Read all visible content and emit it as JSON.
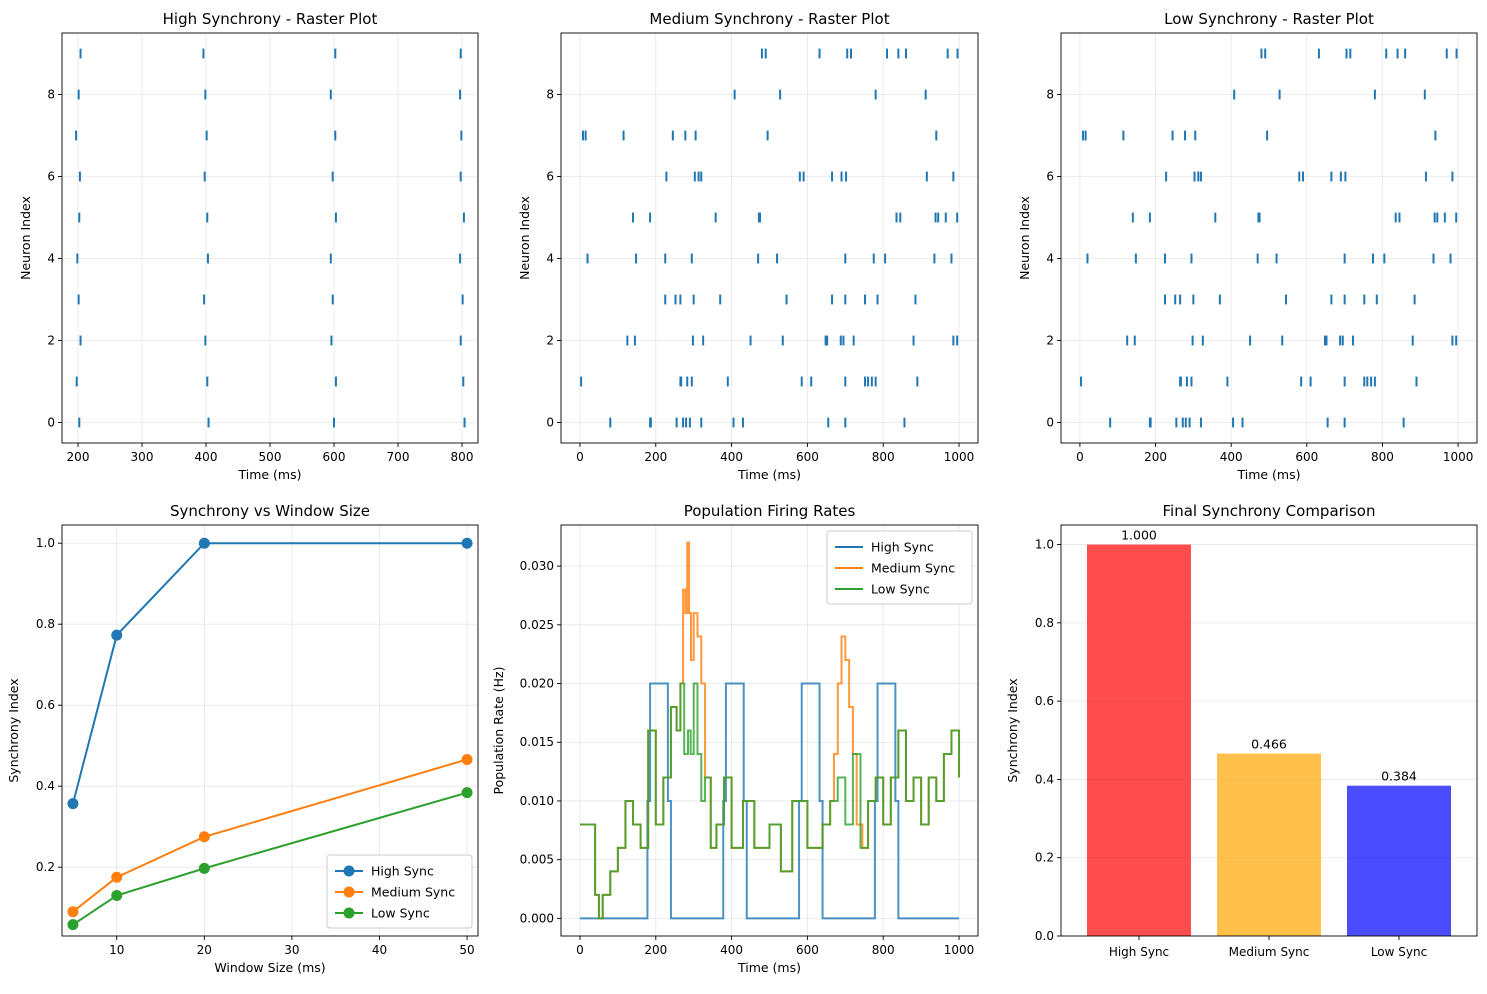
{
  "chart_data": [
    {
      "type": "scatter",
      "marker": "vline",
      "title": "High Synchrony - Raster Plot",
      "xlabel": "Time (ms)",
      "ylabel": "Neuron Index",
      "xlim": [
        175,
        825
      ],
      "ylim": [
        -0.5,
        9.5
      ],
      "xticks": [
        200,
        300,
        400,
        500,
        600,
        700,
        800
      ],
      "yticks": [
        0,
        2,
        4,
        6,
        8
      ],
      "grid": true,
      "color": "#1f77b4",
      "spikes": [
        [
          202,
          404,
          600,
          804
        ],
        [
          198,
          402,
          603,
          802
        ],
        [
          204,
          399,
          596,
          798
        ],
        [
          201,
          397,
          598,
          801
        ],
        [
          199,
          403,
          595,
          797
        ],
        [
          202,
          402,
          603,
          803
        ],
        [
          203,
          398,
          598,
          798
        ],
        [
          197,
          401,
          602,
          799
        ],
        [
          201,
          399,
          595,
          797
        ],
        [
          204,
          396,
          602,
          798
        ]
      ]
    },
    {
      "type": "scatter",
      "marker": "vline",
      "title": "Medium Synchrony - Raster Plot",
      "xlabel": "Time (ms)",
      "ylabel": "Neuron Index",
      "xlim": [
        -50,
        1050
      ],
      "ylim": [
        -0.5,
        9.5
      ],
      "xticks": [
        0,
        200,
        400,
        600,
        800,
        1000
      ],
      "yticks": [
        0,
        2,
        4,
        6,
        8
      ],
      "grid": true,
      "color": "#1f77b4",
      "spikes": [
        [
          80,
          185,
          187,
          255,
          272,
          280,
          290,
          320,
          405,
          430,
          655,
          700,
          856
        ],
        [
          3,
          265,
          267,
          283,
          295,
          390,
          585,
          610,
          700,
          752,
          760,
          770,
          780,
          890
        ],
        [
          125,
          145,
          298,
          325,
          450,
          535,
          648,
          652,
          688,
          695,
          722,
          880,
          985,
          995
        ],
        [
          225,
          252,
          265,
          300,
          370,
          545,
          665,
          700,
          752,
          785,
          885
        ],
        [
          20,
          148,
          225,
          295,
          470,
          520,
          700,
          775,
          805,
          935,
          980
        ],
        [
          140,
          185,
          358,
          472,
          475,
          835,
          845,
          938,
          945,
          965,
          995
        ],
        [
          228,
          303,
          313,
          320,
          580,
          590,
          665,
          690,
          702,
          915,
          985
        ],
        [
          8,
          15,
          115,
          245,
          278,
          305,
          495,
          940
        ],
        [
          408,
          528,
          780,
          912
        ],
        [
          480,
          490,
          632,
          705,
          715,
          810,
          840,
          860,
          970,
          996
        ]
      ]
    },
    {
      "type": "scatter",
      "marker": "vline",
      "title": "Low Synchrony - Raster Plot",
      "xlabel": "Time (ms)",
      "ylabel": "Neuron Index",
      "xlim": [
        -50,
        1050
      ],
      "ylim": [
        -0.5,
        9.5
      ],
      "xticks": [
        0,
        200,
        400,
        600,
        800,
        1000
      ],
      "yticks": [
        0,
        2,
        4,
        6,
        8
      ],
      "grid": true,
      "color": "#1f77b4",
      "spikes": [
        [
          80,
          185,
          187,
          255,
          272,
          280,
          290,
          320,
          405,
          430,
          655,
          700,
          856
        ],
        [
          3,
          265,
          267,
          283,
          295,
          390,
          585,
          610,
          700,
          752,
          760,
          770,
          780,
          890
        ],
        [
          125,
          145,
          298,
          325,
          450,
          535,
          648,
          652,
          688,
          695,
          722,
          880,
          985,
          995
        ],
        [
          225,
          252,
          265,
          300,
          370,
          545,
          665,
          700,
          752,
          785,
          885
        ],
        [
          20,
          148,
          225,
          295,
          470,
          520,
          700,
          775,
          805,
          935,
          980
        ],
        [
          140,
          185,
          358,
          472,
          475,
          835,
          845,
          938,
          945,
          965,
          995
        ],
        [
          228,
          303,
          313,
          320,
          580,
          590,
          665,
          690,
          702,
          915,
          985
        ],
        [
          8,
          15,
          115,
          245,
          278,
          305,
          495,
          940
        ],
        [
          408,
          528,
          780,
          912
        ],
        [
          480,
          490,
          632,
          705,
          715,
          810,
          840,
          860,
          970,
          996
        ]
      ]
    },
    {
      "type": "line",
      "title": "Synchrony vs Window Size",
      "xlabel": "Window Size (ms)",
      "ylabel": "Synchrony Index",
      "xlim": [
        3.75,
        51.25
      ],
      "ylim": [
        0.03,
        1.045
      ],
      "xticks": [
        10,
        20,
        30,
        40,
        50
      ],
      "yticks": [
        0.2,
        0.4,
        0.6,
        0.8,
        1.0
      ],
      "grid": true,
      "markers": true,
      "legend": "lower-right",
      "x": [
        5,
        10,
        20,
        50
      ],
      "series": [
        {
          "name": "High Sync",
          "color": "#1f77b4",
          "values": [
            0.357,
            0.773,
            1.0,
            1.0
          ]
        },
        {
          "name": "Medium Sync",
          "color": "#ff7f0e",
          "values": [
            0.09,
            0.175,
            0.275,
            0.466
          ]
        },
        {
          "name": "Low Sync",
          "color": "#2ca02c",
          "values": [
            0.058,
            0.13,
            0.197,
            0.384
          ]
        }
      ]
    },
    {
      "type": "line",
      "step": true,
      "title": "Population Firing Rates",
      "xlabel": "Time (ms)",
      "ylabel": "Population Rate (Hz)",
      "xlim": [
        -50,
        1050
      ],
      "ylim": [
        -0.0015,
        0.0335
      ],
      "xticks": [
        0,
        200,
        400,
        600,
        800,
        1000
      ],
      "yticks": [
        0.0,
        0.005,
        0.01,
        0.015,
        0.02,
        0.025,
        0.03
      ],
      "grid": true,
      "legend": "top-right",
      "series": [
        {
          "name": "High Sync",
          "color": "#1f77b4",
          "points": [
            [
              0,
              0
            ],
            [
              170,
              0
            ],
            [
              178,
              0.01
            ],
            [
              185,
              0.02
            ],
            [
              225,
              0.02
            ],
            [
              232,
              0.01
            ],
            [
              240,
              0
            ],
            [
              370,
              0
            ],
            [
              378,
              0.01
            ],
            [
              385,
              0.02
            ],
            [
              425,
              0.02
            ],
            [
              432,
              0.01
            ],
            [
              440,
              0
            ],
            [
              570,
              0
            ],
            [
              578,
              0.01
            ],
            [
              585,
              0.02
            ],
            [
              625,
              0.02
            ],
            [
              632,
              0.01
            ],
            [
              640,
              0
            ],
            [
              770,
              0
            ],
            [
              778,
              0.01
            ],
            [
              785,
              0.02
            ],
            [
              825,
              0.02
            ],
            [
              832,
              0.01
            ],
            [
              840,
              0
            ],
            [
              1000,
              0
            ]
          ]
        },
        {
          "name": "Medium Sync",
          "color": "#ff7f0e",
          "points": [
            [
              0,
              0.008
            ],
            [
              30,
              0.008
            ],
            [
              40,
              0.002
            ],
            [
              50,
              0
            ],
            [
              60,
              0.002
            ],
            [
              80,
              0.004
            ],
            [
              100,
              0.006
            ],
            [
              120,
              0.01
            ],
            [
              140,
              0.008
            ],
            [
              160,
              0.006
            ],
            [
              180,
              0.016
            ],
            [
              200,
              0.008
            ],
            [
              220,
              0.012
            ],
            [
              240,
              0.018
            ],
            [
              255,
              0.016
            ],
            [
              265,
              0.02
            ],
            [
              272,
              0.028
            ],
            [
              278,
              0.026
            ],
            [
              283,
              0.032
            ],
            [
              288,
              0.026
            ],
            [
              293,
              0.022
            ],
            [
              300,
              0.026
            ],
            [
              310,
              0.024
            ],
            [
              320,
              0.02
            ],
            [
              330,
              0.012
            ],
            [
              345,
              0.006
            ],
            [
              360,
              0.008
            ],
            [
              380,
              0.012
            ],
            [
              400,
              0.006
            ],
            [
              430,
              0.01
            ],
            [
              460,
              0.006
            ],
            [
              500,
              0.008
            ],
            [
              530,
              0.004
            ],
            [
              560,
              0.01
            ],
            [
              600,
              0.006
            ],
            [
              640,
              0.008
            ],
            [
              660,
              0.01
            ],
            [
              670,
              0.014
            ],
            [
              680,
              0.02
            ],
            [
              690,
              0.024
            ],
            [
              700,
              0.022
            ],
            [
              710,
              0.018
            ],
            [
              720,
              0.014
            ],
            [
              730,
              0.008
            ],
            [
              745,
              0.006
            ],
            [
              760,
              0.01
            ],
            [
              780,
              0.012
            ],
            [
              800,
              0.008
            ],
            [
              820,
              0.012
            ],
            [
              840,
              0.016
            ],
            [
              860,
              0.01
            ],
            [
              880,
              0.012
            ],
            [
              900,
              0.008
            ],
            [
              920,
              0.012
            ],
            [
              940,
              0.01
            ],
            [
              960,
              0.014
            ],
            [
              980,
              0.016
            ],
            [
              1000,
              0.012
            ]
          ]
        },
        {
          "name": "Low Sync",
          "color": "#2ca02c",
          "points": [
            [
              0,
              0.008
            ],
            [
              30,
              0.008
            ],
            [
              40,
              0.002
            ],
            [
              50,
              0
            ],
            [
              60,
              0.002
            ],
            [
              80,
              0.004
            ],
            [
              100,
              0.006
            ],
            [
              120,
              0.01
            ],
            [
              140,
              0.008
            ],
            [
              160,
              0.006
            ],
            [
              180,
              0.016
            ],
            [
              200,
              0.008
            ],
            [
              220,
              0.012
            ],
            [
              240,
              0.018
            ],
            [
              255,
              0.016
            ],
            [
              265,
              0.02
            ],
            [
              275,
              0.014
            ],
            [
              285,
              0.016
            ],
            [
              292,
              0.014
            ],
            [
              300,
              0.02
            ],
            [
              310,
              0.014
            ],
            [
              320,
              0.01
            ],
            [
              330,
              0.012
            ],
            [
              345,
              0.006
            ],
            [
              360,
              0.008
            ],
            [
              380,
              0.012
            ],
            [
              400,
              0.006
            ],
            [
              430,
              0.01
            ],
            [
              460,
              0.006
            ],
            [
              500,
              0.008
            ],
            [
              530,
              0.004
            ],
            [
              560,
              0.01
            ],
            [
              600,
              0.006
            ],
            [
              640,
              0.008
            ],
            [
              660,
              0.01
            ],
            [
              680,
              0.012
            ],
            [
              700,
              0.008
            ],
            [
              720,
              0.014
            ],
            [
              740,
              0.006
            ],
            [
              760,
              0.01
            ],
            [
              780,
              0.012
            ],
            [
              800,
              0.008
            ],
            [
              820,
              0.012
            ],
            [
              840,
              0.016
            ],
            [
              860,
              0.01
            ],
            [
              880,
              0.012
            ],
            [
              900,
              0.008
            ],
            [
              920,
              0.012
            ],
            [
              940,
              0.01
            ],
            [
              960,
              0.014
            ],
            [
              980,
              0.016
            ],
            [
              1000,
              0.012
            ]
          ]
        }
      ]
    },
    {
      "type": "bar",
      "title": "Final Synchrony Comparison",
      "xlabel": "",
      "ylabel": "Synchrony Index",
      "ylim": [
        0,
        1.05
      ],
      "yticks": [
        0.0,
        0.2,
        0.4,
        0.6,
        0.8,
        1.0
      ],
      "grid": true,
      "categories": [
        "High Sync",
        "Medium Sync",
        "Low Sync"
      ],
      "values": [
        1.0,
        0.466,
        0.384
      ],
      "value_labels": [
        "1.000",
        "0.466",
        "0.384"
      ],
      "colors": [
        "#ff0000",
        "#ffa500",
        "#0000ff"
      ],
      "alpha": 0.7
    }
  ]
}
